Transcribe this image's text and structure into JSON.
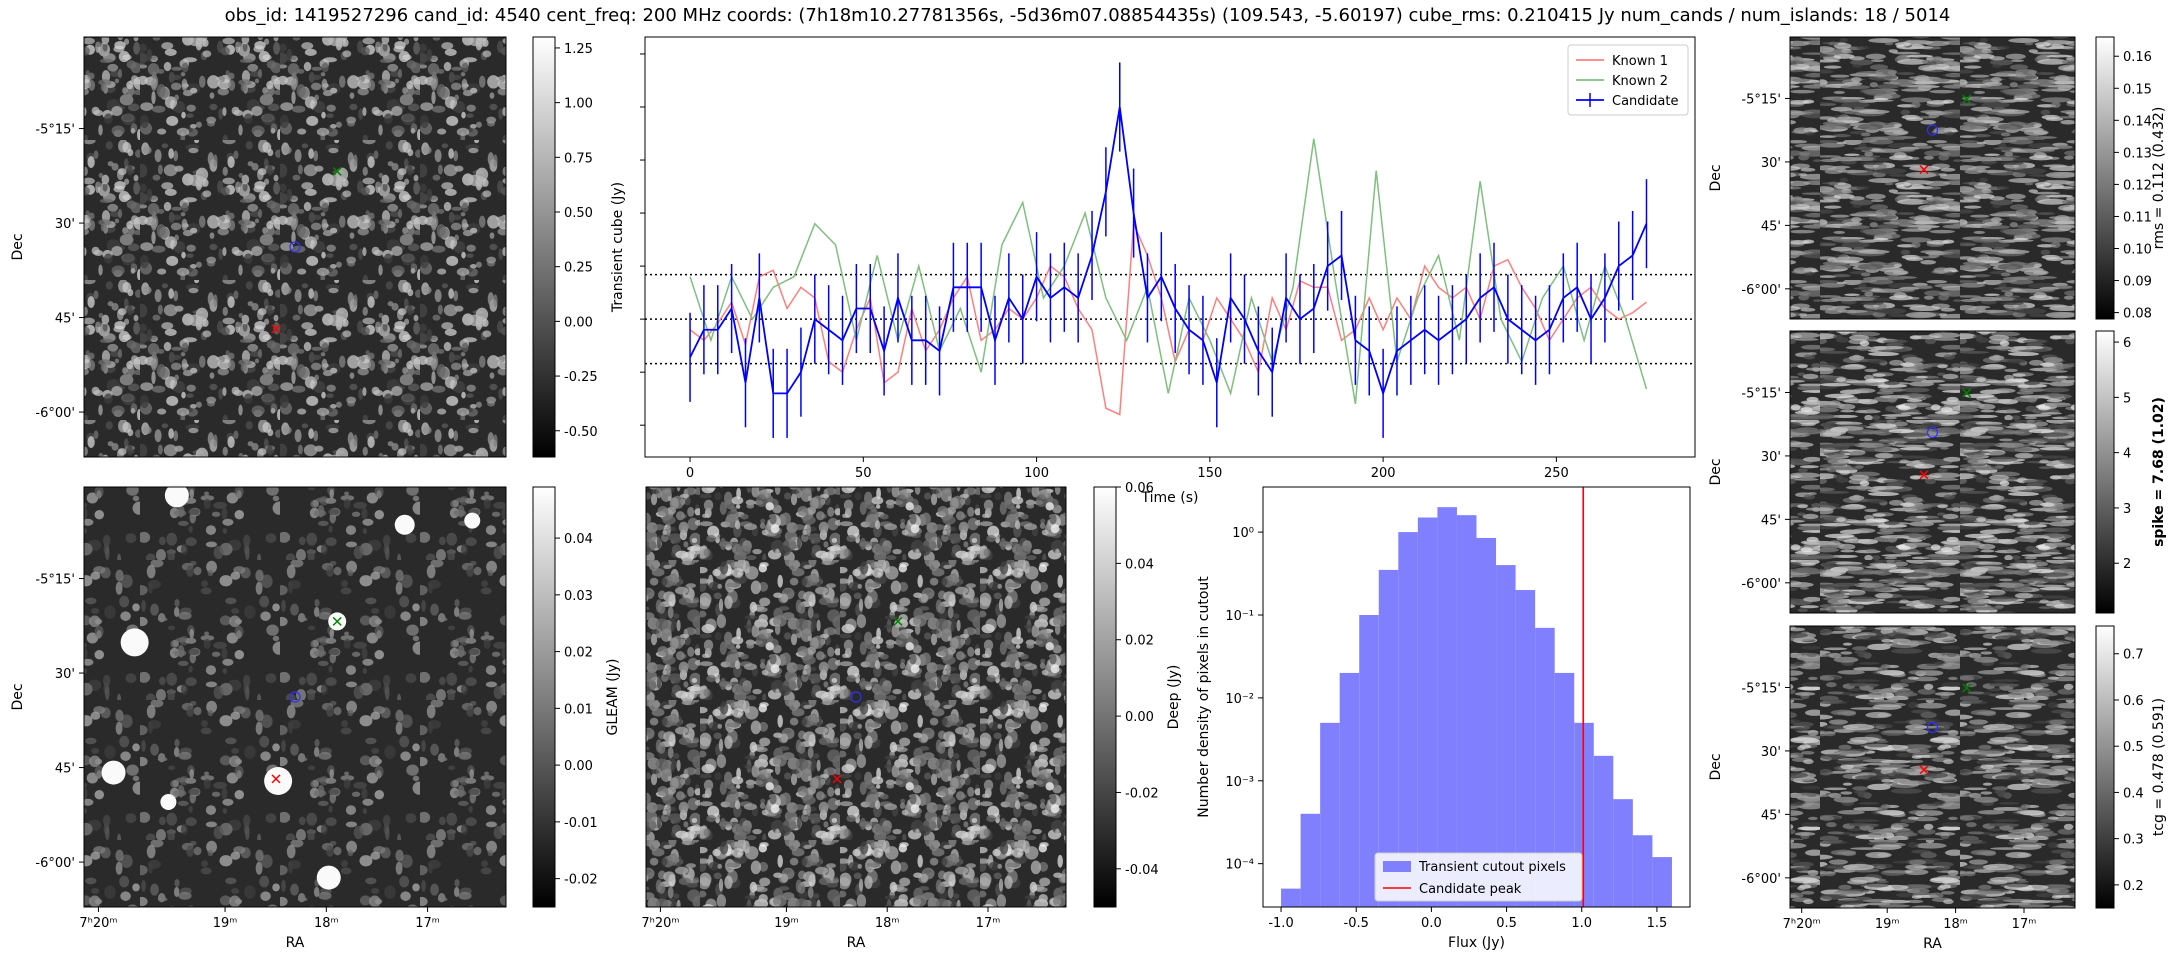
{
  "title": "obs_id: 1419527296 cand_id: 4540 cent_freq: 200 MHz coords: (7h18m10.27781356s, -5d36m07.08854435s) (109.543, -5.60197) cube_rms: 0.210415 Jy num_cands / num_islands: 18 / 5014",
  "chart_data": [
    {
      "id": "transient_cube_image",
      "type": "heatmap",
      "ylabel": "Dec",
      "yticks": [
        "-5°15'",
        "30'",
        "45'",
        "-6°00'"
      ],
      "colorbar": {
        "label": "",
        "ticks": [
          "1.25",
          "1.00",
          "0.75",
          "0.50",
          "0.25",
          "0.00",
          "-0.25",
          "-0.50"
        ],
        "range": [
          -0.62,
          1.3
        ]
      },
      "markers": {
        "candidate": "blue circle",
        "known_1": "red x",
        "known_2": "green x"
      }
    },
    {
      "id": "transient_lightcurve",
      "type": "line",
      "xlabel": "Time (s)",
      "ylabel": "Transient cube (Jy)",
      "xticks": [
        "0",
        "50",
        "100",
        "150",
        "200",
        "250"
      ],
      "xlim": [
        -13,
        290
      ],
      "ylim": [
        -0.65,
        1.33
      ],
      "hlines": [
        -0.21,
        0.0,
        0.21
      ],
      "legend": [
        "Known 1",
        "Known 2",
        "Candidate"
      ],
      "series": [
        {
          "name": "Known 1",
          "color": "#ff7f7f",
          "x": [
            0,
            4,
            8,
            12,
            16,
            20,
            24,
            28,
            32,
            36,
            40,
            44,
            48,
            52,
            56,
            60,
            64,
            68,
            72,
            76,
            80,
            84,
            88,
            92,
            96,
            100,
            104,
            108,
            112,
            116,
            120,
            124,
            128,
            132,
            136,
            140,
            144,
            148,
            152,
            156,
            160,
            164,
            168,
            172,
            176,
            180,
            184,
            188,
            192,
            196,
            200,
            204,
            208,
            212,
            216,
            220,
            224,
            228,
            232,
            236,
            240,
            244,
            248,
            252,
            256,
            260,
            264,
            268,
            272,
            276
          ],
          "y": [
            -0.05,
            -0.1,
            -0.02,
            0.08,
            -0.12,
            0.2,
            0.23,
            0.05,
            0.15,
            0.1,
            -0.2,
            -0.25,
            -0.05,
            0.1,
            -0.3,
            -0.25,
            0.05,
            -0.15,
            -0.05,
            0.1,
            0.2,
            -0.1,
            -0.05,
            0.05,
            0.0,
            0.1,
            0.25,
            0.2,
            0.05,
            -0.05,
            -0.42,
            -0.45,
            0.45,
            0.3,
            0.1,
            -0.2,
            -0.05,
            -0.1,
            0.1,
            0.0,
            -0.1,
            -0.25,
            0.1,
            -0.05,
            0.18,
            0.15,
            0.15,
            -0.1,
            -0.05,
            0.1,
            -0.05,
            0.1,
            0.0,
            0.25,
            0.15,
            0.1,
            0.15,
            0.0,
            0.25,
            0.28,
            0.15,
            0.05,
            -0.1,
            0.0,
            0.1,
            0.15,
            0.05,
            0.0,
            0.03,
            0.08
          ]
        },
        {
          "name": "Known 2",
          "color": "#7fbf7f",
          "x": [
            0,
            6,
            12,
            18,
            24,
            30,
            36,
            42,
            48,
            54,
            60,
            66,
            72,
            78,
            84,
            90,
            96,
            102,
            108,
            114,
            120,
            126,
            132,
            138,
            144,
            150,
            156,
            162,
            168,
            174,
            180,
            186,
            192,
            198,
            204,
            210,
            216,
            222,
            228,
            234,
            240,
            246,
            252,
            258,
            264,
            270,
            276
          ],
          "y": [
            0.2,
            -0.1,
            0.2,
            0.0,
            0.15,
            0.2,
            0.45,
            0.35,
            -0.1,
            0.3,
            -0.1,
            0.25,
            -0.15,
            0.05,
            -0.25,
            0.35,
            0.55,
            0.1,
            0.25,
            0.5,
            0.1,
            -0.1,
            0.15,
            -0.35,
            0.1,
            -0.1,
            -0.35,
            0.1,
            -0.2,
            0.15,
            0.85,
            0.2,
            -0.4,
            0.7,
            -0.2,
            0.1,
            0.3,
            -0.1,
            0.65,
            0.0,
            -0.2,
            0.1,
            0.25,
            -0.1,
            0.25,
            0.0,
            -0.33
          ]
        },
        {
          "name": "Candidate",
          "color": "#0000ff",
          "x": [
            0,
            4,
            8,
            12,
            16,
            20,
            24,
            28,
            32,
            36,
            40,
            44,
            48,
            52,
            56,
            60,
            64,
            68,
            72,
            76,
            80,
            84,
            88,
            92,
            96,
            100,
            104,
            108,
            112,
            116,
            120,
            124,
            128,
            132,
            136,
            140,
            144,
            148,
            152,
            156,
            160,
            164,
            168,
            172,
            176,
            180,
            184,
            188,
            192,
            196,
            200,
            204,
            208,
            212,
            216,
            220,
            224,
            228,
            232,
            236,
            240,
            244,
            248,
            252,
            256,
            260,
            264,
            268,
            272,
            276
          ],
          "y": [
            -0.18,
            -0.05,
            -0.05,
            0.05,
            -0.3,
            0.1,
            -0.35,
            -0.35,
            -0.25,
            0.0,
            -0.05,
            -0.1,
            0.05,
            0.05,
            -0.15,
            0.1,
            -0.1,
            -0.1,
            -0.15,
            0.15,
            0.15,
            0.15,
            -0.1,
            0.1,
            0.0,
            0.2,
            0.1,
            0.15,
            0.1,
            0.3,
            0.6,
            1.0,
            0.5,
            0.1,
            0.2,
            0.05,
            -0.05,
            -0.1,
            -0.3,
            0.1,
            0.0,
            -0.15,
            -0.25,
            0.1,
            0.0,
            0.05,
            0.25,
            0.3,
            -0.1,
            -0.15,
            -0.35,
            -0.15,
            -0.1,
            -0.05,
            -0.1,
            -0.05,
            0.0,
            0.1,
            0.15,
            0.0,
            -0.05,
            -0.1,
            -0.05,
            0.1,
            0.15,
            0.0,
            0.1,
            0.25,
            0.3,
            0.45
          ],
          "err": 0.21
        }
      ]
    },
    {
      "id": "gleam_image",
      "type": "heatmap",
      "xlabel": "RA",
      "ylabel": "Dec",
      "xticks": [
        "7ʰ20ᵐ",
        "19ᵐ",
        "18ᵐ",
        "17ᵐ"
      ],
      "yticks": [
        "-5°15'",
        "30'",
        "45'",
        "-6°00'"
      ],
      "colorbar": {
        "label": "GLEAM (Jy)",
        "ticks": [
          "0.04",
          "0.03",
          "0.02",
          "0.01",
          "0.00",
          "-0.01",
          "-0.02"
        ],
        "range": [
          -0.025,
          0.049
        ]
      }
    },
    {
      "id": "deep_image",
      "type": "heatmap",
      "xlabel": "RA",
      "xticks": [
        "7ʰ20ᵐ",
        "19ᵐ",
        "18ᵐ",
        "17ᵐ"
      ],
      "colorbar": {
        "label": "Deep (Jy)",
        "ticks": [
          "0.06",
          "0.04",
          "0.02",
          "0.00",
          "-0.02",
          "-0.04"
        ],
        "range": [
          -0.05,
          0.06
        ]
      }
    },
    {
      "id": "flux_histogram",
      "type": "bar",
      "xlabel": "Flux (Jy)",
      "ylabel": "Number density of pixels in cutout",
      "xticks": [
        "-1.0",
        "-0.5",
        "0.0",
        "0.5",
        "1.0",
        "1.5"
      ],
      "yticks": [
        "10⁰",
        "10⁻¹",
        "10⁻²",
        "10⁻³",
        "10⁻⁴"
      ],
      "yscale": "log",
      "xlim": [
        -1.12,
        1.72
      ],
      "ylim": [
        3e-05,
        3.5
      ],
      "bin_edges": [
        -1.0,
        -0.87,
        -0.74,
        -0.61,
        -0.48,
        -0.35,
        -0.22,
        -0.09,
        0.04,
        0.17,
        0.3,
        0.43,
        0.56,
        0.69,
        0.82,
        0.95,
        1.08,
        1.21,
        1.34,
        1.47,
        1.6
      ],
      "values": [
        5e-05,
        0.0004,
        0.005,
        0.02,
        0.1,
        0.35,
        1.0,
        1.5,
        2.0,
        1.6,
        0.85,
        0.4,
        0.2,
        0.07,
        0.02,
        0.005,
        0.002,
        0.0006,
        0.00022,
        0.00012
      ],
      "vline": 1.01,
      "legend": [
        "Transient cutout pixels",
        "Candidate peak"
      ]
    },
    {
      "id": "rms_image",
      "type": "heatmap",
      "ylabel": "Dec",
      "yticks": [
        "-5°15'",
        "30'",
        "45'",
        "-6°00'"
      ],
      "colorbar": {
        "label": "rms = 0.112 (0.432)",
        "ticks": [
          "0.16",
          "0.15",
          "0.14",
          "0.13",
          "0.12",
          "0.11",
          "0.10",
          "0.09",
          "0.08"
        ],
        "range": [
          0.078,
          0.166
        ]
      }
    },
    {
      "id": "spike_image",
      "type": "heatmap",
      "ylabel": "Dec",
      "yticks": [
        "-5°15'",
        "30'",
        "45'",
        "-6°00'"
      ],
      "colorbar": {
        "label": "spike = 7.68 (1.02)",
        "ticks": [
          "6",
          "5",
          "4",
          "3",
          "2"
        ],
        "range": [
          1.1,
          6.2
        ]
      }
    },
    {
      "id": "tcg_image",
      "type": "heatmap",
      "xlabel": "RA",
      "ylabel": "Dec",
      "xticks": [
        "7ʰ20ᵐ",
        "19ᵐ",
        "18ᵐ",
        "17ᵐ"
      ],
      "yticks": [
        "-5°15'",
        "30'",
        "45'",
        "-6°00'"
      ],
      "colorbar": {
        "label": "tcg = 0.478 (0.591)",
        "ticks": [
          "0.7",
          "0.6",
          "0.5",
          "0.4",
          "0.3",
          "0.2"
        ],
        "range": [
          0.15,
          0.76
        ]
      }
    }
  ]
}
